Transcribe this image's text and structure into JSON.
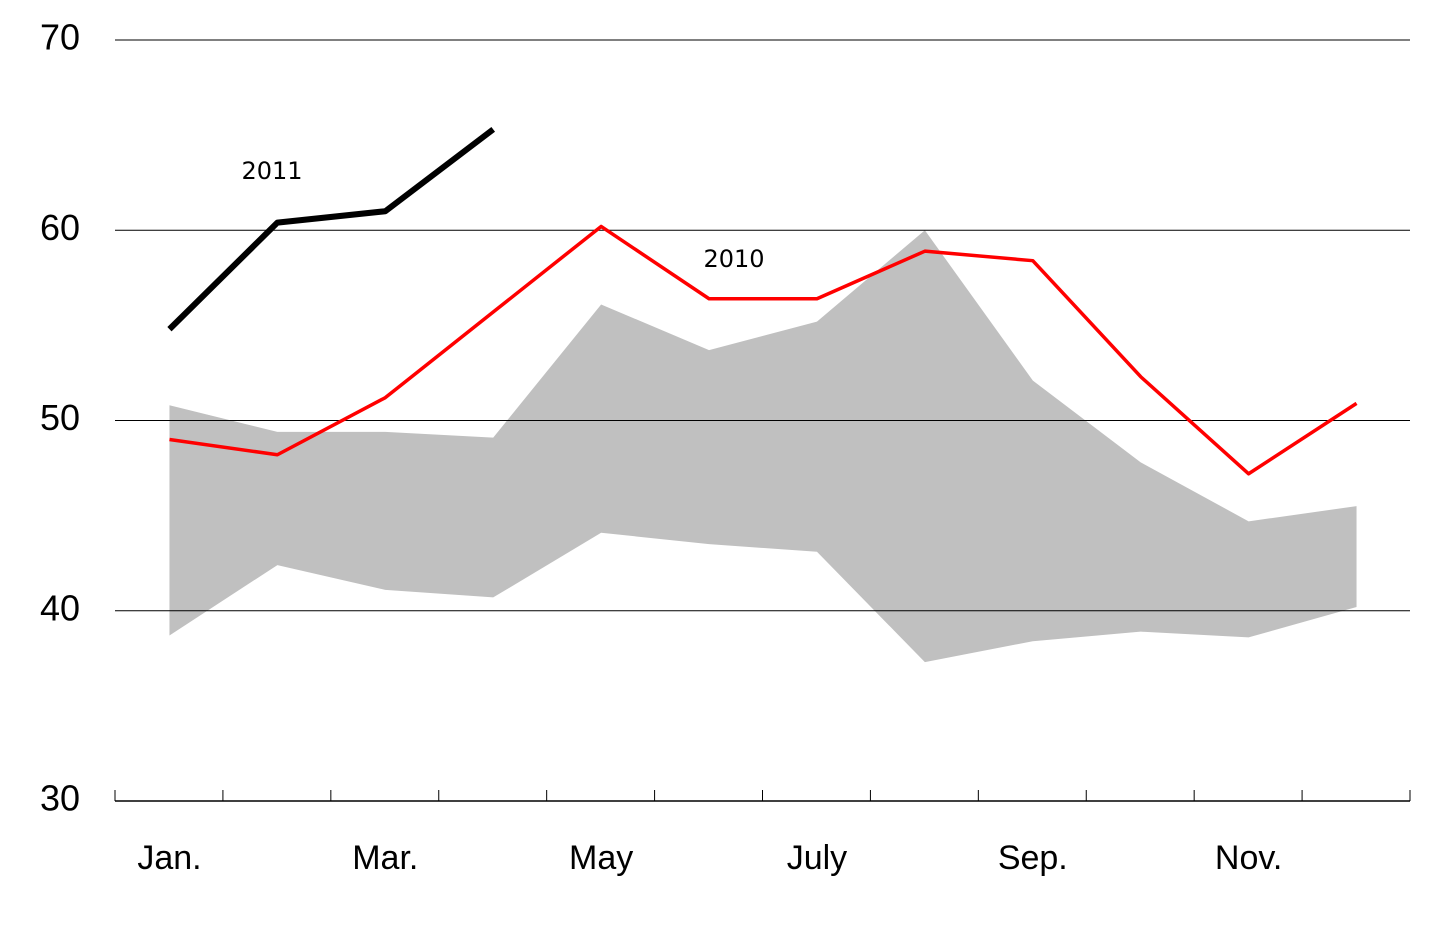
{
  "chart_data": {
    "type": "line",
    "categories": [
      "Jan.",
      null,
      "Mar.",
      null,
      "May",
      null,
      "July",
      null,
      "Sep.",
      null,
      "Nov.",
      null
    ],
    "band": {
      "color": "#c0c0c0",
      "upper": [
        50.8,
        49.4,
        49.4,
        49.1,
        56.1,
        53.7,
        55.2,
        60.0,
        52.1,
        47.8,
        44.7,
        45.5
      ],
      "lower": [
        38.7,
        42.4,
        41.1,
        40.7,
        44.1,
        43.5,
        43.1,
        37.3,
        38.4,
        38.9,
        38.6,
        40.2
      ]
    },
    "series": [
      {
        "name": "2010",
        "color": "#ff0000",
        "values": [
          49.0,
          48.2,
          51.2,
          55.7,
          60.2,
          56.4,
          56.4,
          58.9,
          58.4,
          52.3,
          47.2,
          50.9
        ]
      },
      {
        "name": "2011",
        "color": "#000000",
        "values": [
          54.8,
          60.4,
          61.0,
          65.3,
          null,
          null,
          null,
          null,
          null,
          null,
          null,
          null
        ]
      }
    ],
    "ylim": [
      30,
      70
    ],
    "yticks": [
      30,
      40,
      50,
      60,
      70
    ],
    "grid": true
  }
}
